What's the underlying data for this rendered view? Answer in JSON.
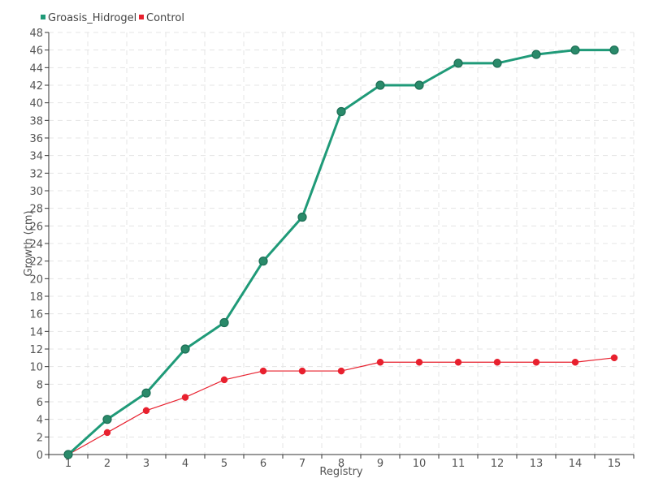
{
  "chart_data": {
    "type": "line",
    "title": "",
    "xlabel": "Registry",
    "ylabel": "Growth (cm)",
    "categories": [
      "1",
      "2",
      "3",
      "4",
      "5",
      "6",
      "7",
      "8",
      "9",
      "10",
      "11",
      "12",
      "13",
      "14",
      "15"
    ],
    "ylim": [
      0,
      48
    ],
    "ytick_step": 2,
    "grid": true,
    "legend_position": "top-left",
    "series": [
      {
        "name": "Groasis_Hidrogel",
        "color": "#1f9a78",
        "marker_color": "#2a8a6a",
        "values": [
          0,
          4,
          7,
          12,
          15,
          22,
          27,
          39,
          42,
          42,
          44.5,
          44.5,
          45.5,
          46,
          46
        ]
      },
      {
        "name": "Control",
        "color": "#e8202e",
        "marker_color": "#e8202e",
        "values": [
          0,
          2.5,
          5,
          6.5,
          8.5,
          9.5,
          9.5,
          9.5,
          10.5,
          10.5,
          10.5,
          10.5,
          10.5,
          10.5,
          11
        ]
      }
    ]
  }
}
